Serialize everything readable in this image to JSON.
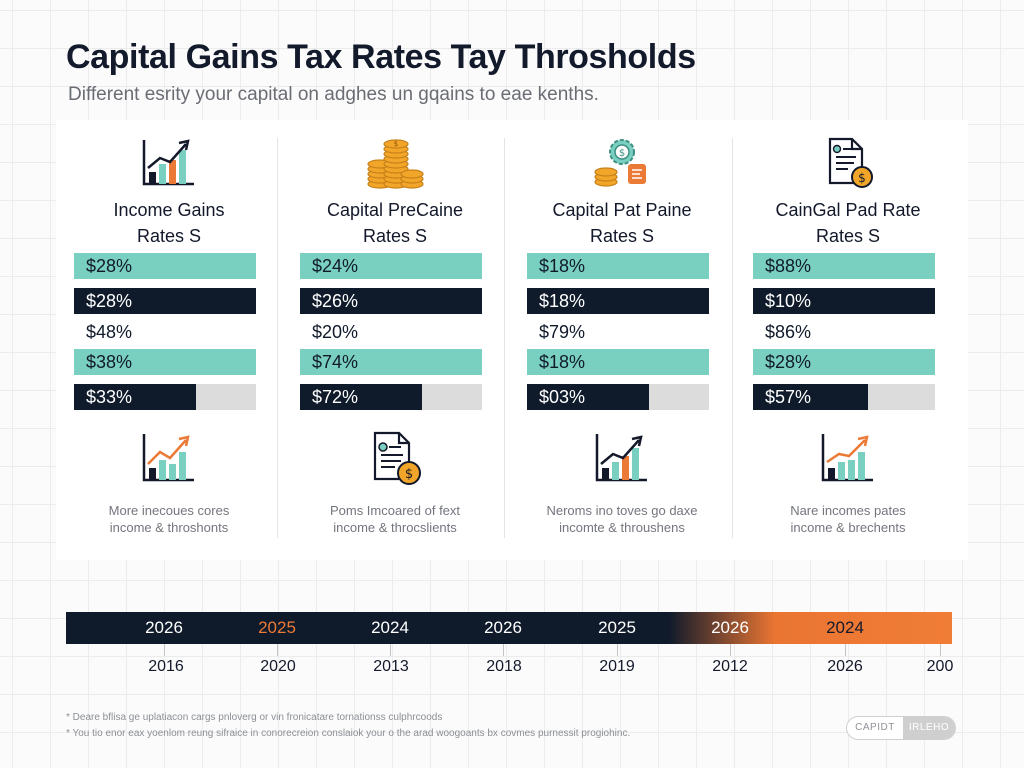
{
  "header": {
    "title": "Capital Gains Tax Rates Tay Throsholds",
    "subtitle": "Different esrity your capital on adghes un gqains to eae kenths."
  },
  "columns": [
    {
      "title": "Income Gains\nRates S",
      "top_icon": "bar-chart-growth-icon",
      "rates": [
        {
          "text": "$28%",
          "style": "teal"
        },
        {
          "text": "$28%",
          "style": "navy"
        },
        {
          "text": "$48%",
          "style": "plain"
        },
        {
          "text": "$38%",
          "style": "teal"
        },
        {
          "text": "$33%",
          "style": "partial",
          "fill": 0.67
        }
      ],
      "bottom_icon": "bar-chart-growth-icon",
      "footer": "More inecoues cores\nincome & throshonts"
    },
    {
      "title": "Capital PreCaine\nRates S",
      "top_icon": "coin-stacks-icon",
      "rates": [
        {
          "text": "$24%",
          "style": "teal"
        },
        {
          "text": "$26%",
          "style": "navy"
        },
        {
          "text": "$20%",
          "style": "plain"
        },
        {
          "text": "$74%",
          "style": "teal"
        },
        {
          "text": "$72%",
          "style": "partial",
          "fill": 0.67
        }
      ],
      "bottom_icon": "tax-document-coin-icon",
      "footer": "Poms Imcoared of fext\nincome & throcslients"
    },
    {
      "title": "Capital Pat Paine\nRates S",
      "top_icon": "coins-gear-icon",
      "rates": [
        {
          "text": "$18%",
          "style": "teal"
        },
        {
          "text": "$18%",
          "style": "navy"
        },
        {
          "text": "$79%",
          "style": "plain"
        },
        {
          "text": "$18%",
          "style": "teal"
        },
        {
          "text": "$03%",
          "style": "partial",
          "fill": 0.67
        }
      ],
      "bottom_icon": "bar-chart-growth-icon",
      "footer": "Neroms ino toves go daxe\nincomte & throushens"
    },
    {
      "title": "CainGal Pad Rate\nRates S",
      "top_icon": "tax-document-coin-icon",
      "rates": [
        {
          "text": "$88%",
          "style": "teal"
        },
        {
          "text": "$10%",
          "style": "navy"
        },
        {
          "text": "$86%",
          "style": "plain"
        },
        {
          "text": "$28%",
          "style": "teal"
        },
        {
          "text": "$57%",
          "style": "partial",
          "fill": 0.63
        }
      ],
      "bottom_icon": "bar-chart-growth-icon",
      "footer": "Nare incomes pates\nincome & brechents"
    }
  ],
  "timeline": {
    "top_labels": [
      "2026",
      "2025",
      "2024",
      "2026",
      "2025",
      "2026",
      "2024"
    ],
    "bottom_labels": [
      "2016",
      "2020",
      "2013",
      "2018",
      "2019",
      "2012",
      "2026",
      "200"
    ]
  },
  "footnotes": [
    "* Deare bflisa ge uplatiacon cargs pnloverg or vin fronicatare tornationss culphrcoods",
    "* You tio enor eax yoenlom reung sifraice in conorecreion conslaiok your o the arad woogoants bx covmes purnessit progiohinc."
  ],
  "badge": {
    "left": "CAPIDT",
    "right": "IRLEHO"
  },
  "colors": {
    "navy": "#0f1a2b",
    "teal": "#79cfc0",
    "orange": "#ec7a37",
    "gray": "#dcdcdc"
  }
}
